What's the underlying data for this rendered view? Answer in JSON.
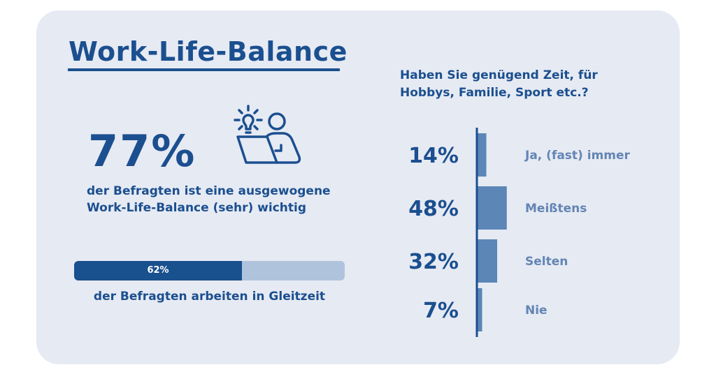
{
  "title": "Work-Life-Balance",
  "left_stat": {
    "value": "77%",
    "icon": "idea-person-laptop-icon",
    "description_line1": "der Befragten ist eine ausgewogene",
    "description_line2": "Work-Life-Balance (sehr) wichtig"
  },
  "progress": {
    "label": "62%",
    "fraction": 0.62,
    "caption": "der Befragten arbeiten in Gleitzeit"
  },
  "colors": {
    "primary": "#1b4f8f",
    "bar": "#5b86b6",
    "label": "#6385b4",
    "track": "#b0c3dc",
    "background": "#e6eaf3"
  },
  "chart_data": {
    "type": "bar",
    "orientation": "horizontal",
    "title": "Haben Sie genügend Zeit, für Hobbys, Familie, Sport etc.?",
    "title_line1": "Haben Sie genügend Zeit, für",
    "title_line2": "Hobbys, Familie, Sport etc.?",
    "categories": [
      "Ja, (fast) immer",
      "Meißtens",
      "Selten",
      "Nie"
    ],
    "values": [
      14,
      48,
      32,
      7
    ],
    "value_labels": [
      "14%",
      "48%",
      "32%",
      "7%"
    ],
    "unit": "%",
    "xlim": [
      0,
      100
    ],
    "grid": false,
    "legend": "none"
  }
}
